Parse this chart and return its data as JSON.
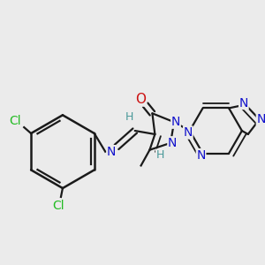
{
  "bg_color": "#ebebeb",
  "bond_color": "#1a1a1a",
  "bond_width": 1.6,
  "dbo": 0.055,
  "atom_colors": {
    "Cl": "#22bb22",
    "N": "#1111cc",
    "O": "#cc1111",
    "H": "#4a9999",
    "C": "#1a1a1a"
  }
}
